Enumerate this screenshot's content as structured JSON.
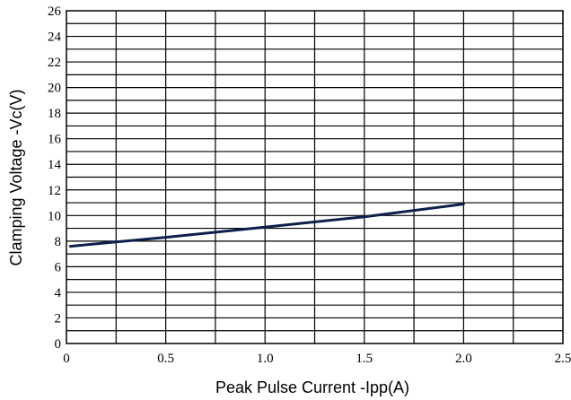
{
  "chart_data": {
    "type": "line",
    "xlabel": "Peak Pulse Current    -Ipp(A)",
    "ylabel": "Clamping Voltage -Vc(V)",
    "xlim": [
      0,
      2.5
    ],
    "ylim": [
      0,
      26
    ],
    "xticks": [
      "0",
      "0.5",
      "1.0",
      "1.5",
      "2.0",
      "2.5"
    ],
    "yticks": [
      "0",
      "2",
      "4",
      "6",
      "8",
      "10",
      "12",
      "14",
      "16",
      "18",
      "20",
      "22",
      "24",
      "26"
    ],
    "x_minor_step": 0.25,
    "y_minor_step": 1,
    "grid": true,
    "series": [
      {
        "color": "#0d1f4a",
        "points": [
          [
            0.02,
            7.6
          ],
          [
            0.5,
            8.3
          ],
          [
            1.0,
            9.1
          ],
          [
            1.5,
            9.9
          ],
          [
            2.0,
            10.9
          ]
        ]
      }
    ]
  }
}
